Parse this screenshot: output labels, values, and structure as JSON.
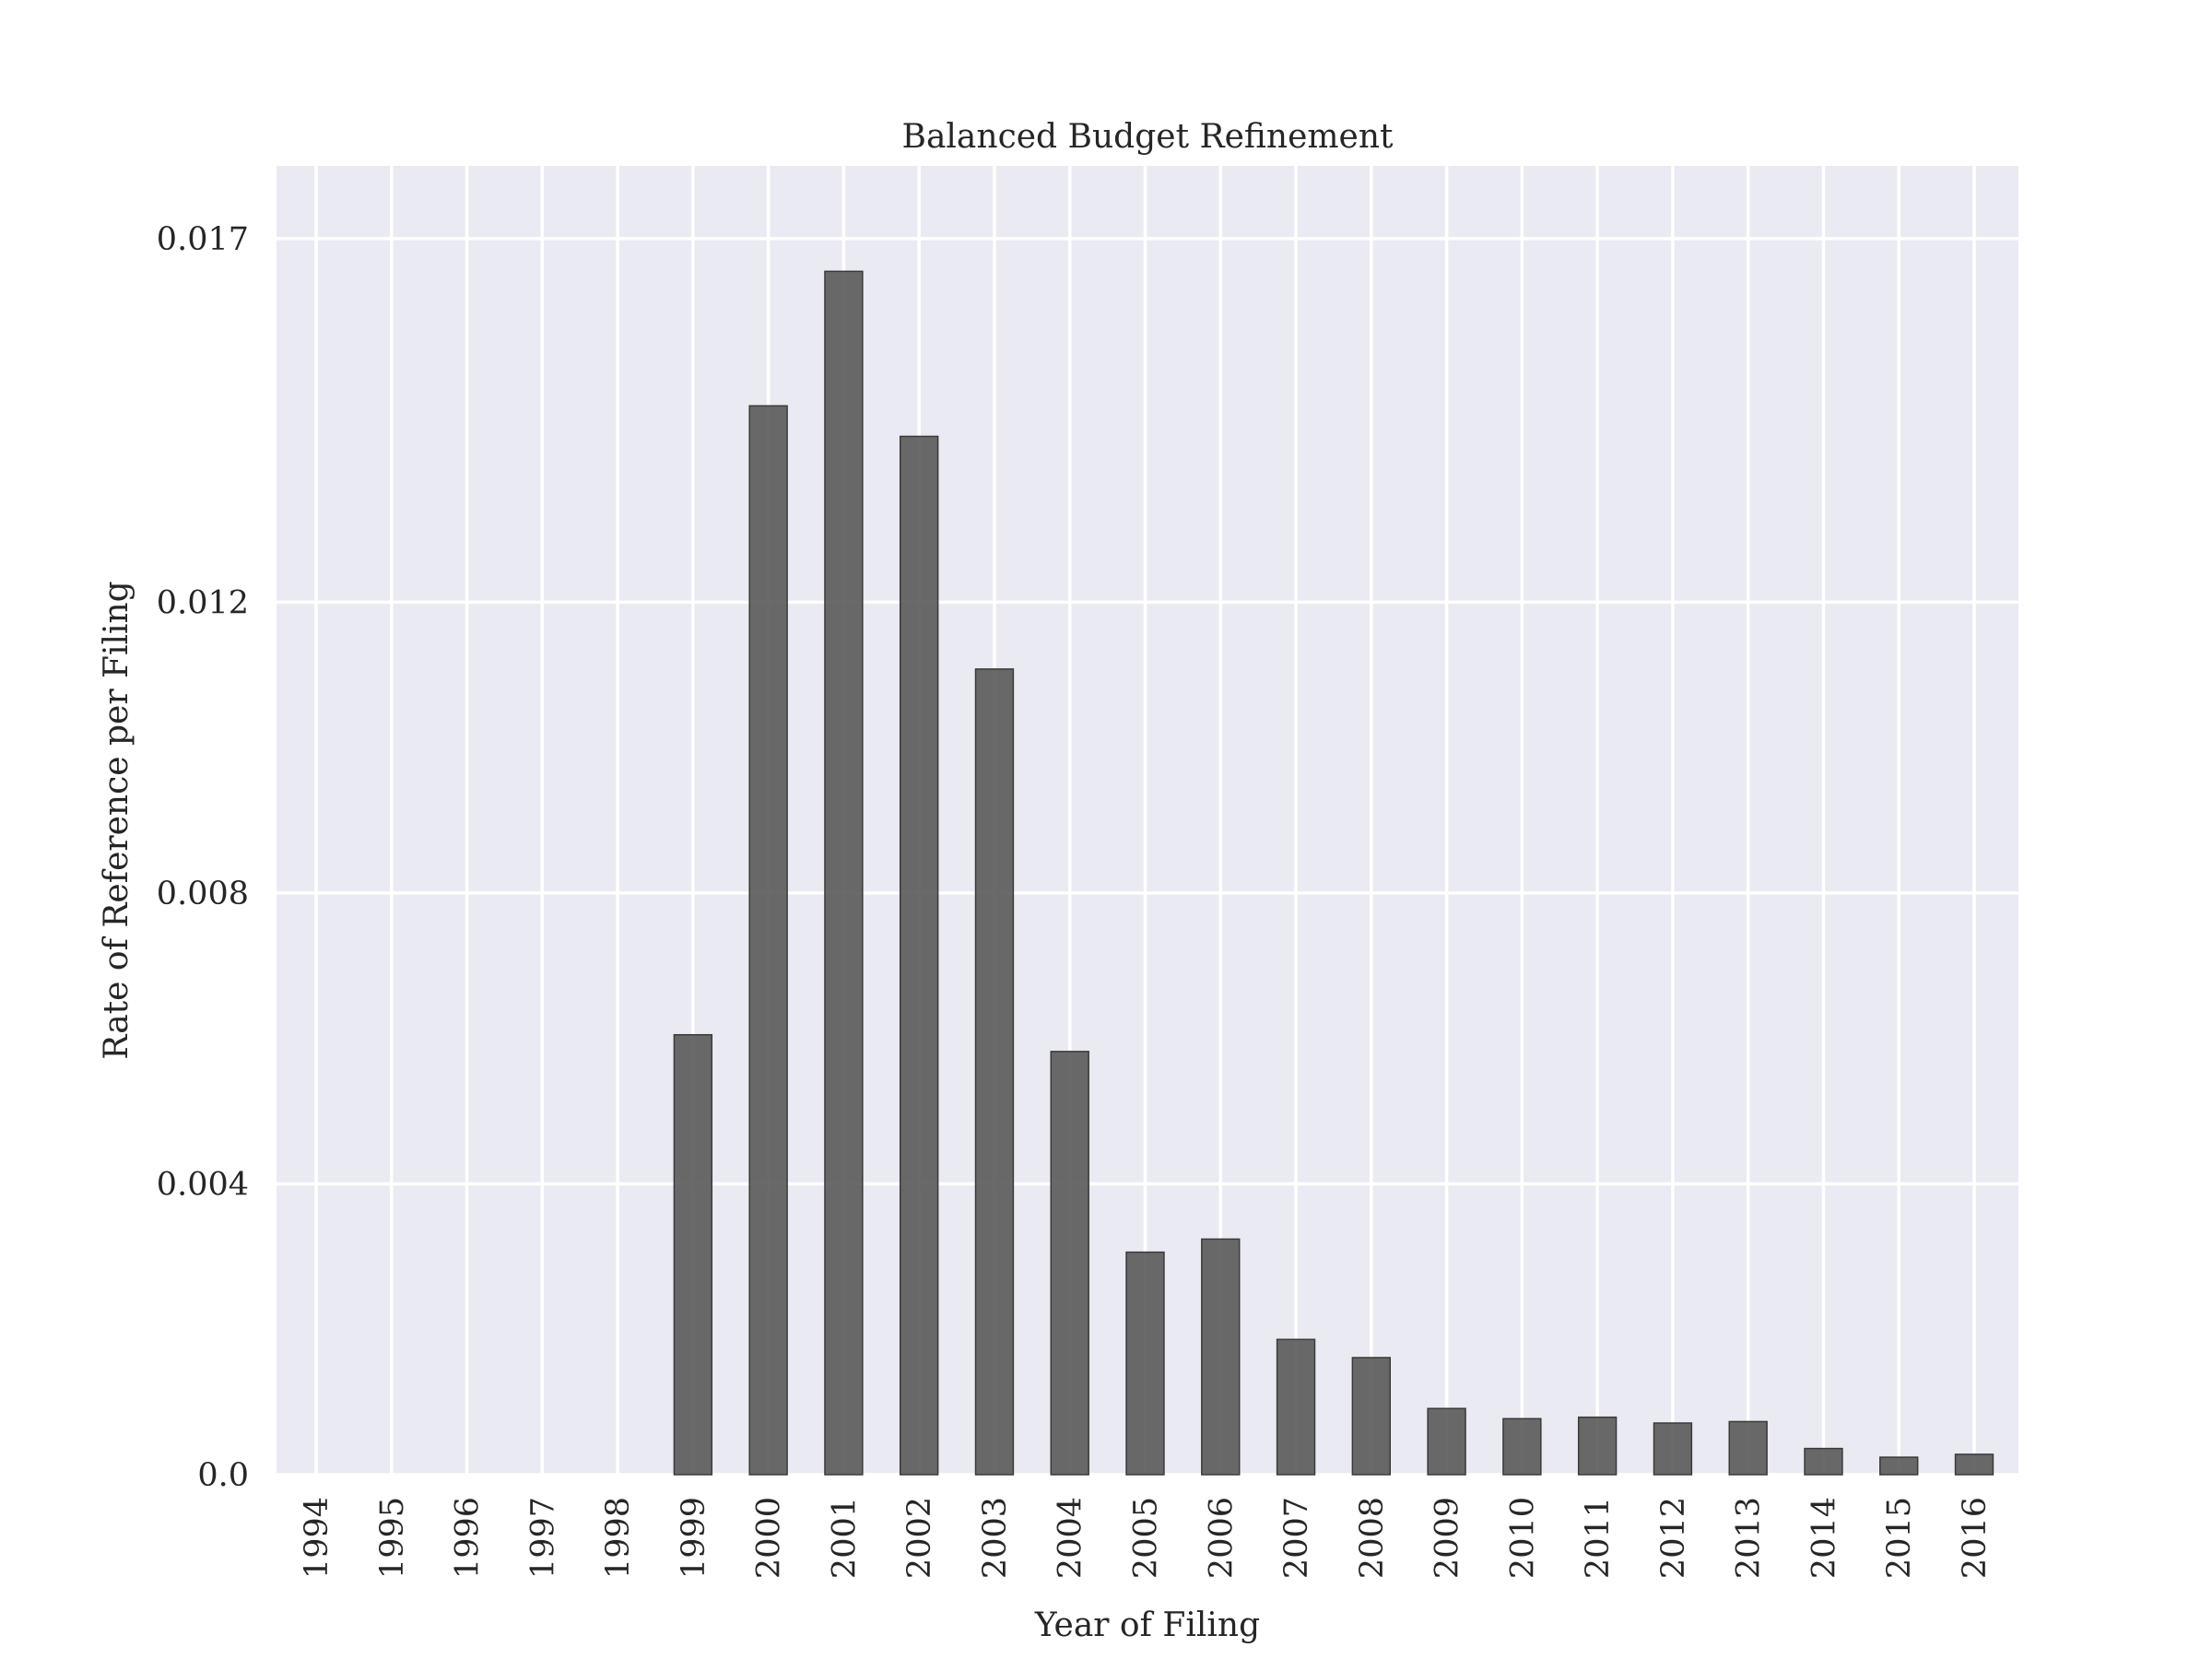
{
  "chart_data": {
    "type": "bar",
    "title": "Balanced Budget Refinement",
    "xlabel": "Year of Filing",
    "ylabel": "Rate of Reference per Filing",
    "categories": [
      "1994",
      "1995",
      "1996",
      "1997",
      "1998",
      "1999",
      "2000",
      "2001",
      "2002",
      "2003",
      "2004",
      "2005",
      "2006",
      "2007",
      "2008",
      "2009",
      "2010",
      "2011",
      "2012",
      "2013",
      "2014",
      "2015",
      "2016"
    ],
    "values": [
      0.0,
      0.0,
      0.0,
      0.0,
      0.0,
      0.00605,
      0.0147,
      0.01655,
      0.01428,
      0.01108,
      0.00582,
      0.00306,
      0.00324,
      0.00186,
      0.00161,
      0.00091,
      0.00077,
      0.00079,
      0.00071,
      0.00073,
      0.00036,
      0.00024,
      0.00028
    ],
    "yticks": [
      0.0,
      0.004,
      0.008,
      0.012,
      0.017
    ],
    "ytick_labels": [
      "0.0",
      "0.004",
      "0.008",
      "0.012",
      "0.017"
    ],
    "ylim": [
      0.0,
      0.018
    ],
    "grid": true,
    "colors": {
      "background": "#eaeaf2",
      "bar": "#555555",
      "grid": "#ffffff"
    }
  }
}
